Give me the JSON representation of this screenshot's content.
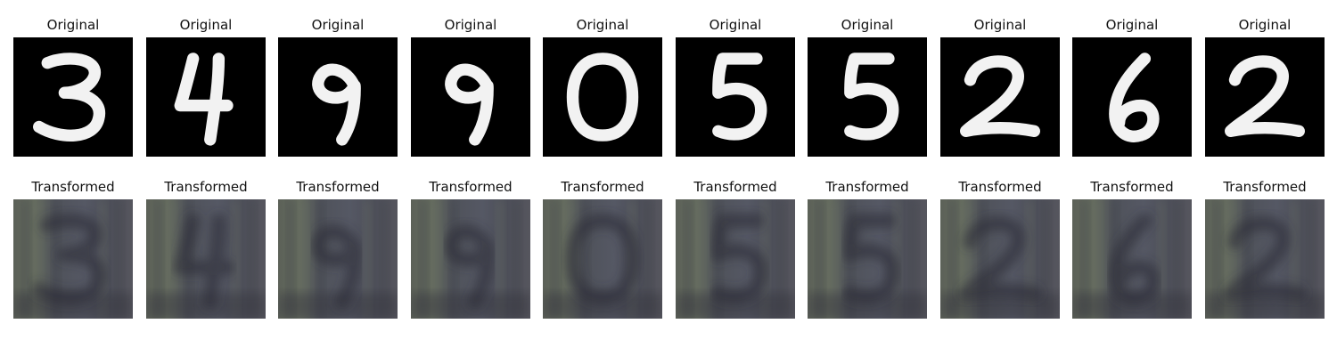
{
  "rows": [
    {
      "label": "Original",
      "kind": "mnist-digit",
      "panels": [
        "3",
        "4",
        "9",
        "9",
        "0",
        "5",
        "5",
        "2",
        "6",
        "2"
      ]
    },
    {
      "label": "Transformed",
      "kind": "svhn-style-reconstruction",
      "panels": [
        "3",
        "4",
        "9",
        "9",
        "0",
        "5",
        "5",
        "2",
        "6",
        "2"
      ]
    }
  ],
  "colors": {
    "background": "#ffffff",
    "original_bg": "#000000",
    "original_fg": "#f2f2f2",
    "transformed_bg": "#4a4c52",
    "transformed_fg": "#2a2c34"
  }
}
